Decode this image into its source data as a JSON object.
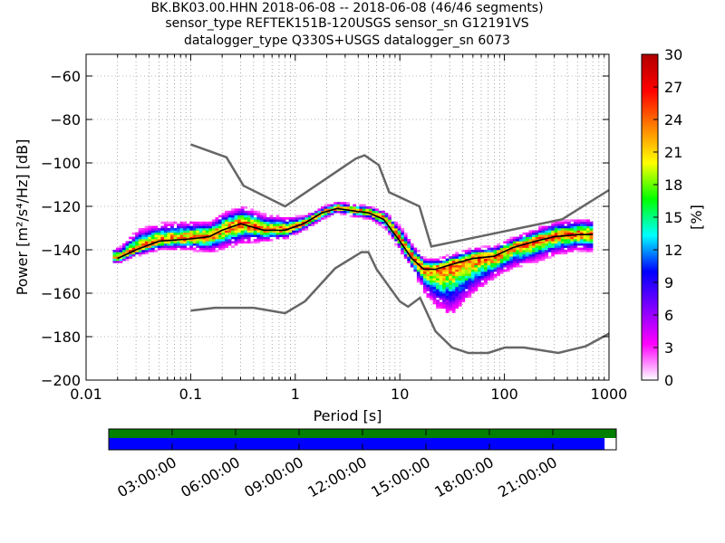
{
  "title": {
    "line1": "BK.BK03.00.HHN   2018-06-08 -- 2018-06-08  (46/46 segments)",
    "line2": "sensor_type REFTEK151B-120USGS sensor_sn G12191VS",
    "line3": "datalogger_type Q330S+USGS datalogger_sn 6073"
  },
  "chart_data": {
    "type": "heatmap",
    "xlabel": "Period [s]",
    "ylabel": "Power [m²/s⁴/Hz] [dB]",
    "x_scale": "log",
    "xlim": [
      0.01,
      1000
    ],
    "ylim": [
      -200,
      -50
    ],
    "x_ticks": [
      0.01,
      0.1,
      1,
      10,
      100,
      1000
    ],
    "x_tick_labels": [
      "0.01",
      "0.1",
      "1",
      "10",
      "100",
      "1000"
    ],
    "y_ticks": [
      -200,
      -180,
      -160,
      -140,
      -120,
      -100,
      -80,
      -60
    ],
    "y_tick_labels": [
      "−200",
      "−180",
      "−160",
      "−140",
      "−120",
      "−100",
      "−80",
      "−60"
    ],
    "grid": true,
    "colorbar": {
      "label": "[%]",
      "range": [
        0,
        30
      ],
      "ticks": [
        0,
        3,
        6,
        9,
        12,
        15,
        18,
        21,
        24,
        27,
        30
      ],
      "colors": [
        "#ffffff",
        "#ff00ff",
        "#8000ff",
        "#0000ff",
        "#00ffff",
        "#00ff00",
        "#ffff00",
        "#ff8000",
        "#ff0000",
        "#b00000"
      ]
    },
    "mode_curve": {
      "name": "mode",
      "period": [
        0.02,
        0.03,
        0.05,
        0.1,
        0.15,
        0.2,
        0.3,
        0.5,
        0.8,
        1.2,
        1.8,
        2.5,
        3.5,
        5,
        7,
        10,
        13,
        17,
        22,
        30,
        50,
        80,
        120,
        200,
        300,
        500,
        700
      ],
      "power": [
        -144,
        -140,
        -136,
        -135,
        -134,
        -131,
        -128,
        -131,
        -131,
        -128,
        -123,
        -121,
        -122,
        -123,
        -126,
        -136,
        -144,
        -149,
        -149,
        -147,
        -144,
        -143,
        -139,
        -136,
        -134,
        -133,
        -133
      ]
    },
    "spread_upper": [
      -140,
      -132,
      -129,
      -128,
      -128,
      -124,
      -121,
      -125,
      -126,
      -125,
      -121,
      -119,
      -120,
      -121,
      -123,
      -131,
      -139,
      -145,
      -145,
      -143,
      -140,
      -139,
      -135,
      -131,
      -128,
      -127,
      -127
    ],
    "spread_lower": [
      -146,
      -143,
      -140,
      -140,
      -141,
      -139,
      -137,
      -136,
      -135,
      -131,
      -126,
      -123,
      -125,
      -126,
      -130,
      -141,
      -150,
      -160,
      -166,
      -169,
      -159,
      -152,
      -148,
      -145,
      -142,
      -140,
      -141
    ],
    "nhnm": {
      "name": "NHNM",
      "period": [
        0.1,
        0.22,
        0.32,
        0.8,
        3.8,
        4.6,
        6.3,
        7.9,
        15.4,
        20,
        354.8,
        1000
      ],
      "power": [
        -91.5,
        -97.4,
        -110.5,
        -120,
        -98,
        -96.5,
        -101,
        -113.5,
        -120,
        -138.5,
        -126,
        -112.5
      ]
    },
    "nlnm": {
      "name": "NLNM",
      "period": [
        0.1,
        0.17,
        0.4,
        0.8,
        1.24,
        2.4,
        4.3,
        5,
        6,
        10,
        12,
        15.6,
        21.9,
        31.6,
        45,
        70,
        101,
        154,
        328,
        600,
        1000
      ],
      "power": [
        -168,
        -166.7,
        -166.7,
        -169.2,
        -163.7,
        -148.6,
        -141.1,
        -141.1,
        -149,
        -163.8,
        -166.2,
        -162.1,
        -177.5,
        -185,
        -187.5,
        -187.5,
        -185,
        -185,
        -187.5,
        -184.4,
        -178.6
      ]
    },
    "data_coverage": {
      "time_ticks": [
        "03:00:00",
        "06:00:00",
        "09:00:00",
        "12:00:00",
        "15:00:00",
        "18:00:00",
        "21:00:00"
      ],
      "time_tick_hours": [
        3,
        6,
        9,
        12,
        15,
        18,
        21
      ],
      "green_fraction": 1.0,
      "blue_fraction": 0.977,
      "green_color": "#008000",
      "blue_color": "#0000ff"
    }
  }
}
